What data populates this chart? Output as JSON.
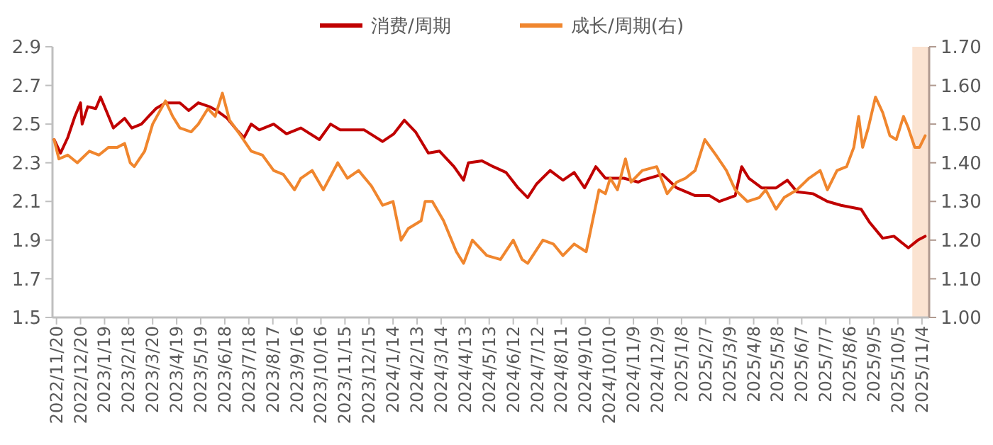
{
  "chart_data": {
    "type": "line",
    "legend": "top",
    "xlim": [
      "2022-11-15",
      "2025-11-13"
    ],
    "xticks": [
      {
        "value": "2022-11-20",
        "label": "2022/11/20"
      },
      {
        "value": "2022-12-20",
        "label": "2022/12/20"
      },
      {
        "value": "2023-01-19",
        "label": "2023/1/19"
      },
      {
        "value": "2023-02-18",
        "label": "2023/2/18"
      },
      {
        "value": "2023-03-20",
        "label": "2023/3/20"
      },
      {
        "value": "2023-04-19",
        "label": "2023/4/19"
      },
      {
        "value": "2023-05-19",
        "label": "2023/5/19"
      },
      {
        "value": "2023-06-18",
        "label": "2023/6/18"
      },
      {
        "value": "2023-07-18",
        "label": "2023/7/18"
      },
      {
        "value": "2023-08-17",
        "label": "2023/8/17"
      },
      {
        "value": "2023-09-16",
        "label": "2023/9/16"
      },
      {
        "value": "2023-10-16",
        "label": "2023/10/16"
      },
      {
        "value": "2023-11-15",
        "label": "2023/11/15"
      },
      {
        "value": "2023-12-15",
        "label": "2023/12/15"
      },
      {
        "value": "2024-01-14",
        "label": "2024/1/14"
      },
      {
        "value": "2024-02-13",
        "label": "2024/2/13"
      },
      {
        "value": "2024-03-14",
        "label": "2024/3/14"
      },
      {
        "value": "2024-04-13",
        "label": "2024/4/13"
      },
      {
        "value": "2024-05-13",
        "label": "2024/5/13"
      },
      {
        "value": "2024-06-12",
        "label": "2024/6/12"
      },
      {
        "value": "2024-07-12",
        "label": "2024/7/12"
      },
      {
        "value": "2024-08-11",
        "label": "2024/8/11"
      },
      {
        "value": "2024-09-10",
        "label": "2024/9/10"
      },
      {
        "value": "2024-10-10",
        "label": "2024/10/10"
      },
      {
        "value": "2024-11-09",
        "label": "2024/11/9"
      },
      {
        "value": "2024-12-09",
        "label": "2024/12/9"
      },
      {
        "value": "2025-01-08",
        "label": "2025/1/8"
      },
      {
        "value": "2025-02-07",
        "label": "2025/2/7"
      },
      {
        "value": "2025-03-09",
        "label": "2025/3/9"
      },
      {
        "value": "2025-04-08",
        "label": "2025/4/8"
      },
      {
        "value": "2025-05-08",
        "label": "2025/5/8"
      },
      {
        "value": "2025-06-07",
        "label": "2025/6/7"
      },
      {
        "value": "2025-07-07",
        "label": "2025/7/7"
      },
      {
        "value": "2025-08-06",
        "label": "2025/8/6"
      },
      {
        "value": "2025-09-05",
        "label": "2025/9/5"
      },
      {
        "value": "2025-10-05",
        "label": "2025/10/5"
      },
      {
        "value": "2025-11-04",
        "label": "2025/11/4"
      }
    ],
    "ylim": [
      1.5,
      2.9
    ],
    "yticks": [
      1.5,
      1.7,
      1.9,
      2.1,
      2.3,
      2.5,
      2.7,
      2.9
    ],
    "y2lim": [
      1.0,
      1.7
    ],
    "y2ticks": [
      {
        "value": 1.0,
        "label": "1.00"
      },
      {
        "value": 1.1,
        "label": "1.10"
      },
      {
        "value": 1.2,
        "label": "1.20"
      },
      {
        "value": 1.3,
        "label": "1.30"
      },
      {
        "value": 1.4,
        "label": "1.40"
      },
      {
        "value": 1.5,
        "label": "1.50"
      },
      {
        "value": 1.6,
        "label": "1.60"
      },
      {
        "value": 1.7,
        "label": "1.70"
      }
    ],
    "bands": [
      {
        "axis": "x",
        "from": "2025-10-23",
        "to": "2025-11-13",
        "color": "#fbe3d1"
      }
    ],
    "series": [
      {
        "name": "消费/周期",
        "color": "#c00000",
        "x": [
          "2022-11-17",
          "2022-11-25",
          "2022-12-04",
          "2022-12-13",
          "2022-12-20",
          "2022-12-22",
          "2022-12-29",
          "2023-01-08",
          "2023-01-14",
          "2023-01-21",
          "2023-01-30",
          "2023-02-13",
          "2023-02-22",
          "2023-03-06",
          "2023-03-15",
          "2023-03-24",
          "2023-04-05",
          "2023-04-23",
          "2023-05-04",
          "2023-05-16",
          "2023-05-30",
          "2023-06-08",
          "2023-06-21",
          "2023-07-03",
          "2023-07-12",
          "2023-07-21",
          "2023-07-31",
          "2023-08-18",
          "2023-09-03",
          "2023-09-21",
          "2023-10-14",
          "2023-10-28",
          "2023-11-09",
          "2023-11-23",
          "2023-12-09",
          "2024-01-01",
          "2024-01-15",
          "2024-01-28",
          "2024-02-11",
          "2024-02-27",
          "2024-03-12",
          "2024-03-30",
          "2024-04-11",
          "2024-04-17",
          "2024-05-04",
          "2024-05-18",
          "2024-06-03",
          "2024-06-18",
          "2024-06-30",
          "2024-07-11",
          "2024-07-28",
          "2024-08-13",
          "2024-08-27",
          "2024-09-09",
          "2024-09-23",
          "2024-10-05",
          "2024-10-28",
          "2024-11-15",
          "2024-11-20",
          "2024-12-15",
          "2025-01-02",
          "2025-01-25",
          "2025-02-12",
          "2025-02-24",
          "2025-03-16",
          "2025-03-24",
          "2025-04-02",
          "2025-04-18",
          "2025-05-06",
          "2025-05-20",
          "2025-06-01",
          "2025-06-21",
          "2025-07-09",
          "2025-07-26",
          "2025-08-20",
          "2025-08-31",
          "2025-09-16",
          "2025-09-30",
          "2025-10-18",
          "2025-10-30",
          "2025-11-08"
        ],
        "values": [
          2.42,
          2.35,
          2.43,
          2.54,
          2.61,
          2.5,
          2.59,
          2.58,
          2.64,
          2.57,
          2.48,
          2.53,
          2.48,
          2.5,
          2.54,
          2.58,
          2.61,
          2.61,
          2.57,
          2.61,
          2.59,
          2.57,
          2.53,
          2.47,
          2.43,
          2.5,
          2.47,
          2.5,
          2.45,
          2.48,
          2.42,
          2.5,
          2.47,
          2.47,
          2.47,
          2.41,
          2.45,
          2.52,
          2.46,
          2.35,
          2.36,
          2.28,
          2.21,
          2.3,
          2.31,
          2.28,
          2.25,
          2.17,
          2.12,
          2.19,
          2.26,
          2.21,
          2.25,
          2.17,
          2.28,
          2.22,
          2.22,
          2.2,
          2.21,
          2.24,
          2.17,
          2.13,
          2.13,
          2.1,
          2.13,
          2.28,
          2.22,
          2.17,
          2.17,
          2.21,
          2.15,
          2.14,
          2.1,
          2.08,
          2.06,
          1.99,
          1.91,
          1.92,
          1.86,
          1.9,
          1.92
        ]
      },
      {
        "name": "成长/周期(右)",
        "color": "#f0862e",
        "axis": "y2",
        "x": [
          "2022-11-17",
          "2022-11-23",
          "2022-12-04",
          "2022-12-16",
          "2022-12-31",
          "2023-01-12",
          "2023-01-24",
          "2023-02-04",
          "2023-02-13",
          "2023-02-20",
          "2023-02-25",
          "2023-03-10",
          "2023-03-20",
          "2023-04-05",
          "2023-04-14",
          "2023-04-23",
          "2023-05-07",
          "2023-05-16",
          "2023-05-28",
          "2023-06-06",
          "2023-06-15",
          "2023-06-24",
          "2023-07-08",
          "2023-07-21",
          "2023-08-04",
          "2023-08-18",
          "2023-08-30",
          "2023-09-13",
          "2023-09-21",
          "2023-10-05",
          "2023-10-19",
          "2023-11-06",
          "2023-11-18",
          "2023-12-02",
          "2023-12-18",
          "2024-01-01",
          "2024-01-14",
          "2024-01-24",
          "2024-02-02",
          "2024-02-18",
          "2024-02-23",
          "2024-03-03",
          "2024-03-17",
          "2024-04-02",
          "2024-04-11",
          "2024-04-22",
          "2024-05-10",
          "2024-05-27",
          "2024-06-12",
          "2024-06-23",
          "2024-06-30",
          "2024-07-19",
          "2024-08-01",
          "2024-08-13",
          "2024-08-27",
          "2024-09-11",
          "2024-09-27",
          "2024-10-05",
          "2024-10-11",
          "2024-10-20",
          "2024-10-30",
          "2024-11-06",
          "2024-11-20",
          "2024-12-08",
          "2024-12-21",
          "2025-01-02",
          "2025-01-13",
          "2025-01-25",
          "2025-02-06",
          "2025-02-20",
          "2025-03-05",
          "2025-03-16",
          "2025-03-31",
          "2025-04-15",
          "2025-04-23",
          "2025-05-06",
          "2025-05-16",
          "2025-06-01",
          "2025-06-16",
          "2025-06-30",
          "2025-07-09",
          "2025-07-21",
          "2025-08-02",
          "2025-08-11",
          "2025-08-17",
          "2025-08-22",
          "2025-08-29",
          "2025-09-07",
          "2025-09-16",
          "2025-09-25",
          "2025-10-03",
          "2025-10-12",
          "2025-10-18",
          "2025-10-26",
          "2025-11-01",
          "2025-11-08"
        ],
        "values": [
          1.46,
          1.41,
          1.42,
          1.4,
          1.43,
          1.42,
          1.44,
          1.44,
          1.45,
          1.4,
          1.39,
          1.43,
          1.5,
          1.56,
          1.52,
          1.49,
          1.48,
          1.5,
          1.54,
          1.52,
          1.58,
          1.51,
          1.47,
          1.43,
          1.42,
          1.38,
          1.37,
          1.33,
          1.36,
          1.38,
          1.33,
          1.4,
          1.36,
          1.38,
          1.34,
          1.29,
          1.3,
          1.2,
          1.23,
          1.25,
          1.3,
          1.3,
          1.25,
          1.17,
          1.14,
          1.2,
          1.16,
          1.15,
          1.2,
          1.15,
          1.14,
          1.2,
          1.19,
          1.16,
          1.19,
          1.17,
          1.33,
          1.32,
          1.36,
          1.33,
          1.41,
          1.35,
          1.38,
          1.39,
          1.32,
          1.35,
          1.36,
          1.38,
          1.46,
          1.42,
          1.38,
          1.33,
          1.3,
          1.31,
          1.33,
          1.28,
          1.31,
          1.33,
          1.36,
          1.38,
          1.33,
          1.38,
          1.39,
          1.44,
          1.52,
          1.44,
          1.49,
          1.57,
          1.53,
          1.47,
          1.46,
          1.52,
          1.49,
          1.44,
          1.44,
          1.47
        ]
      }
    ]
  }
}
